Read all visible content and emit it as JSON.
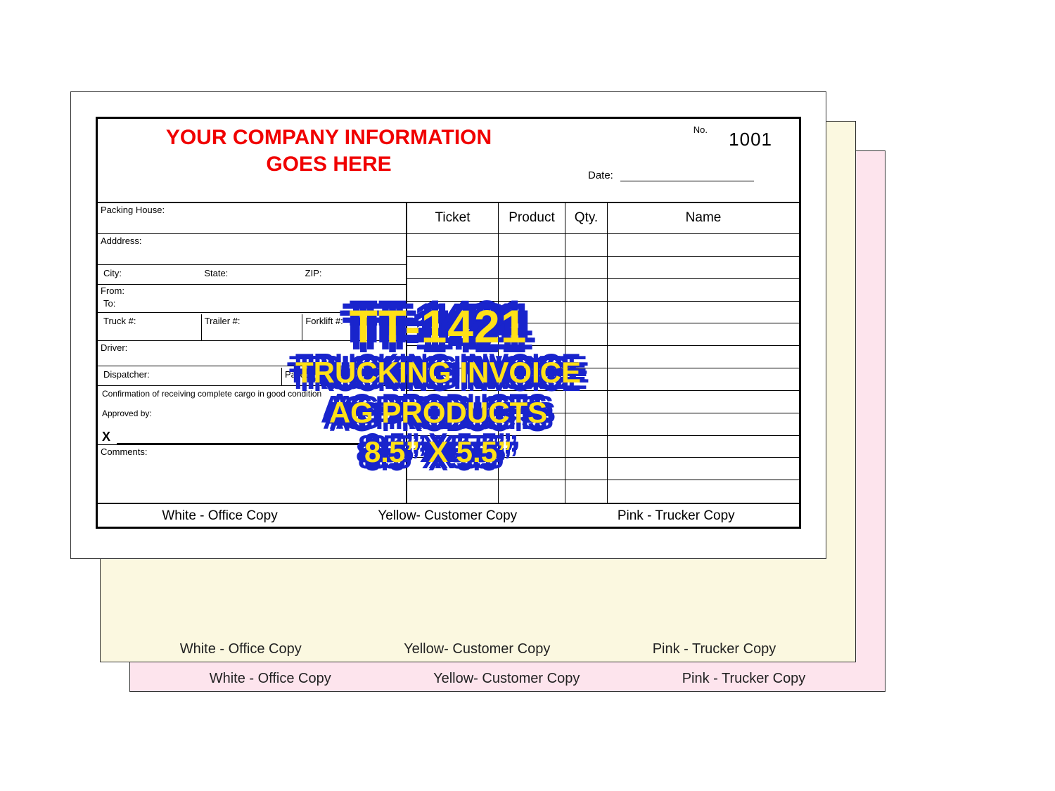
{
  "header": {
    "company_line1": "YOUR COMPANY INFORMATION",
    "company_line2": "GOES HERE",
    "no_label": "No.",
    "no_value": "1001",
    "date_label": "Date:"
  },
  "left_labels": {
    "packing_house": "Packing House:",
    "address": "Adddress:",
    "city": "City:",
    "state": "State:",
    "zip": "ZIP:",
    "from": "From:",
    "to": "To:",
    "truck": "Truck #:",
    "trailer": "Trailer #:",
    "forklift": "Forklift #:",
    "driver": "Driver:",
    "dispatcher": "Dispatcher:",
    "pallets": "Pallets:",
    "confirmation": "Confirmation of receiving complete cargo in good condition",
    "approved_by": "Approved by:",
    "sig_x": "X",
    "comments": "Comments:"
  },
  "grid_headers": {
    "ticket": "Ticket",
    "product": "Product",
    "qty": "Qty.",
    "name": "Name"
  },
  "grid_rows": 12,
  "copies": {
    "white": "White - Office Copy",
    "yellow": "Yellow- Customer Copy",
    "pink": "Pink - Trucker Copy"
  },
  "stamp": {
    "line1": "TT-1421",
    "line2": "TRUCKING INVOICE",
    "line3": "AG PRODUCTS",
    "line4": "8.5” X 5.5”",
    "text_color": "#ffe017",
    "outline_color": "#1924cc"
  },
  "colors": {
    "pink_sheet": "#fde4ed",
    "yellow_sheet": "#fbf8e0",
    "white_sheet": "#ffffff",
    "company_red": "#f00000",
    "border": "#000000"
  }
}
